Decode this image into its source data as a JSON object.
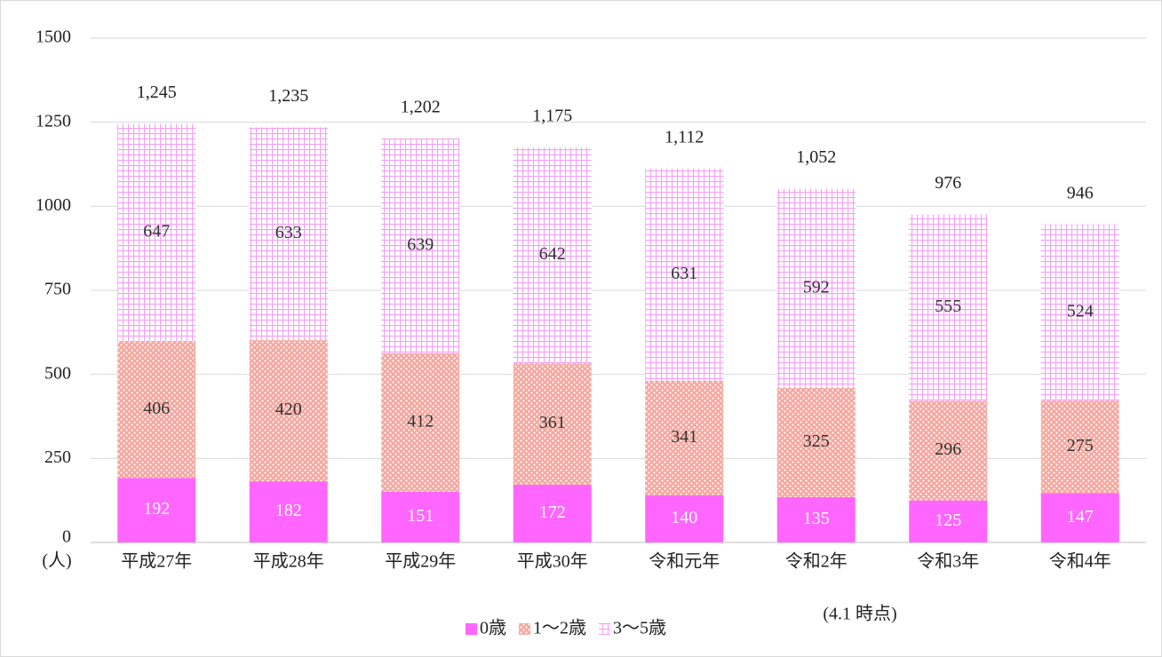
{
  "chart_data": {
    "type": "stacked_bar",
    "categories": [
      "平成27年",
      "平成28年",
      "平成29年",
      "平成30年",
      "令和元年",
      "令和2年",
      "令和3年",
      "令和4年"
    ],
    "series": [
      {
        "name": "0歳",
        "color": "#ff66ff",
        "pattern": "solid",
        "values": [
          192,
          182,
          151,
          172,
          140,
          135,
          125,
          147
        ]
      },
      {
        "name": "1～2歳",
        "color": "#f4a8a0",
        "pattern": "dots",
        "values": [
          406,
          420,
          412,
          361,
          341,
          325,
          296,
          275
        ]
      },
      {
        "name": "3～5歳",
        "color": "#f4a0f4",
        "pattern": "grid",
        "values": [
          647,
          633,
          639,
          642,
          631,
          592,
          555,
          524
        ]
      }
    ],
    "totals": [
      1245,
      1235,
      1202,
      1175,
      1112,
      1052,
      976,
      946
    ],
    "total_labels": [
      "1,245",
      "1,235",
      "1,202",
      "1,175",
      "1,112",
      "1,052",
      "976",
      "946"
    ],
    "ylim": [
      0,
      1500
    ],
    "yticks": [
      0,
      250,
      500,
      750,
      1000,
      1250,
      1500
    ],
    "grid": true,
    "y_unit_label": "(人)",
    "annotation": "(4.1 時点)",
    "legend": "bottom"
  }
}
